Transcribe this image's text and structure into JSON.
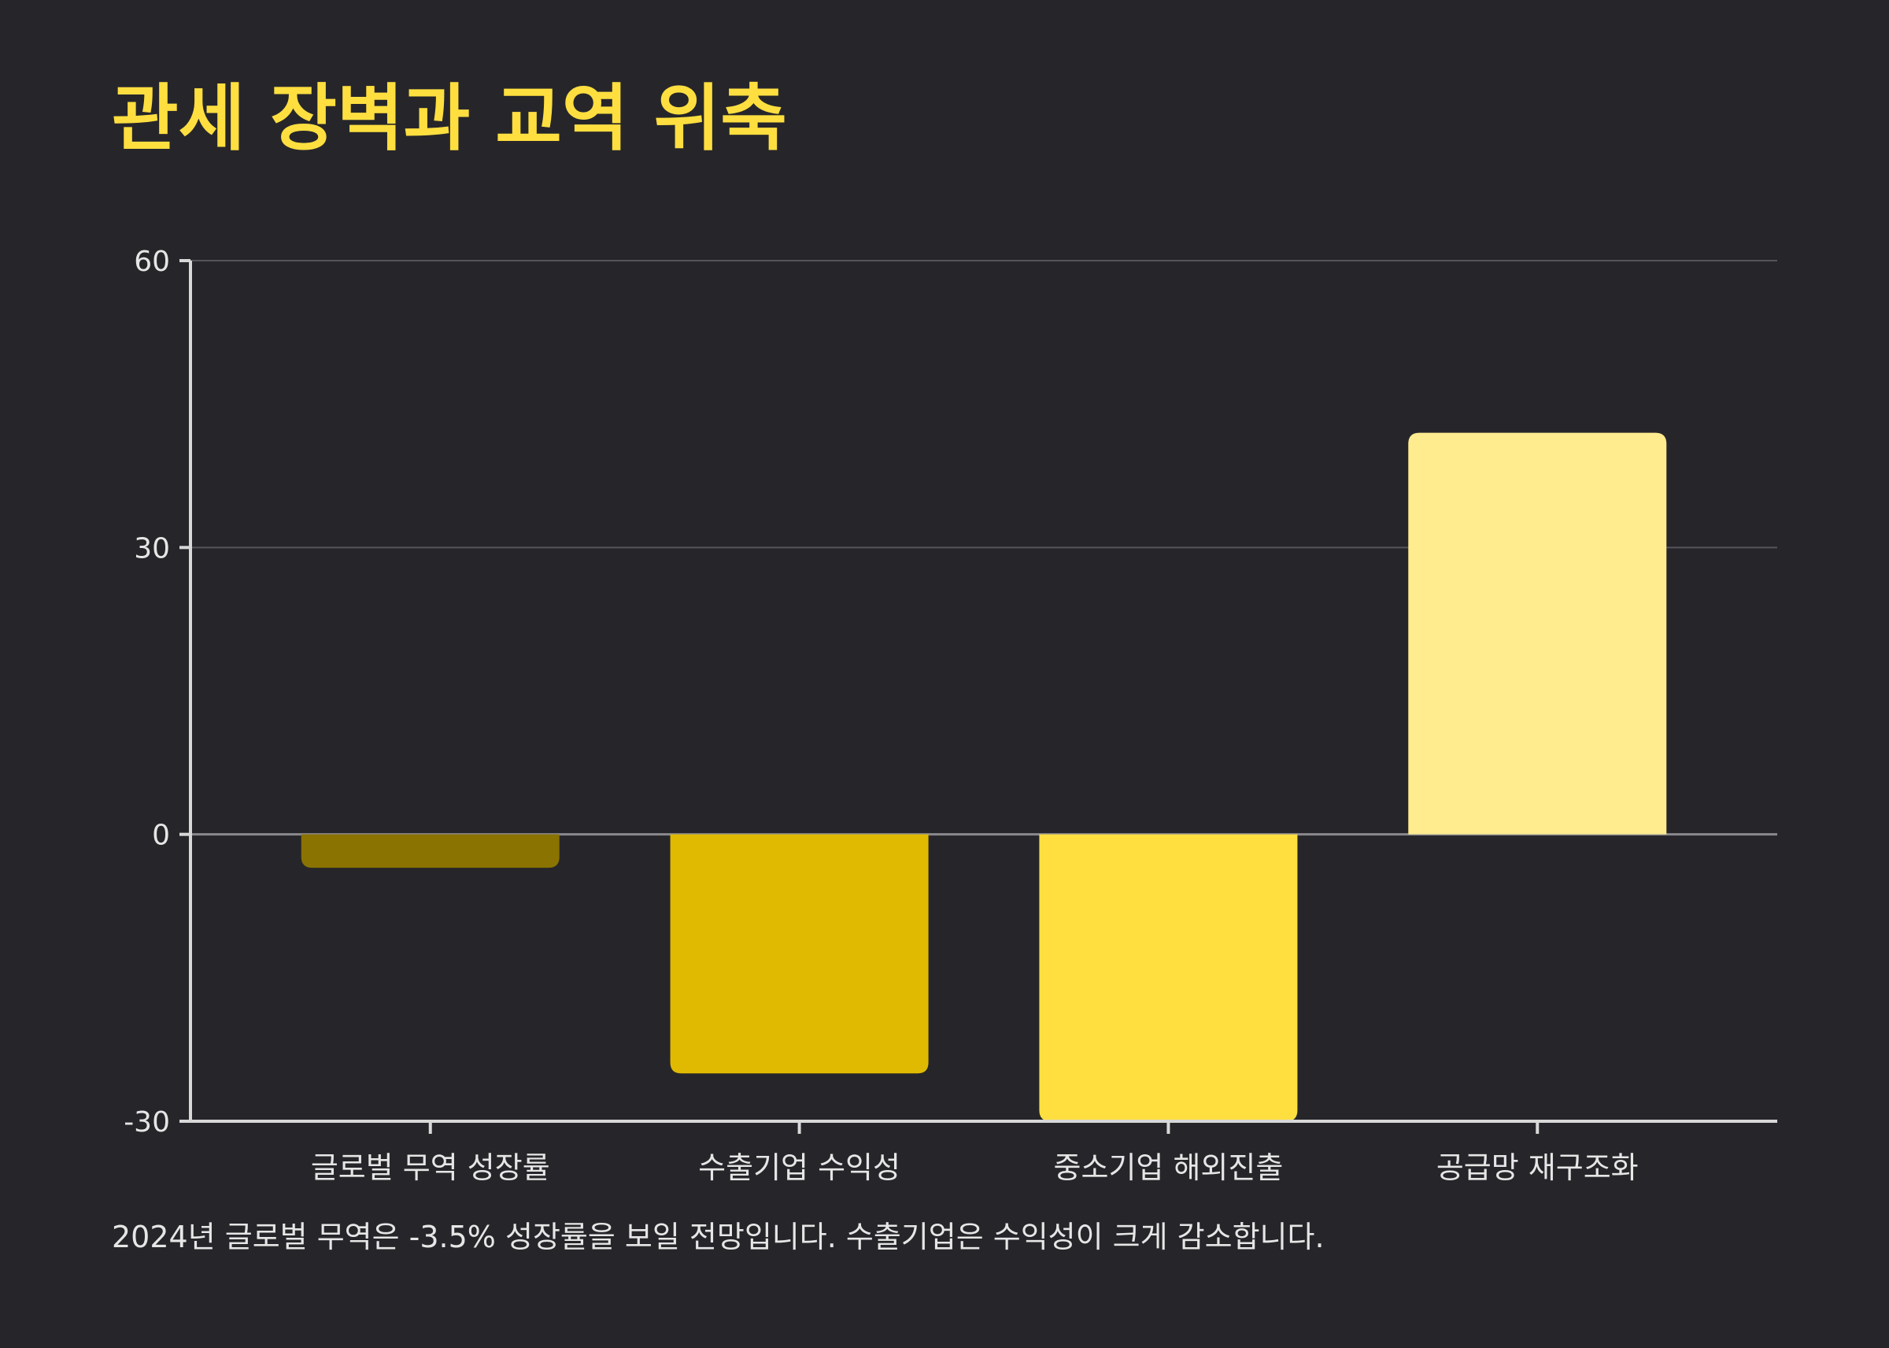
{
  "title": "관세 장벽과 교역 위축",
  "caption": "2024년 글로벌 무역은 -3.5% 성장률을 보일 전망입니다. 수출기업은 수익성이 크게 감소합니다.",
  "colors": {
    "background": "#26262a",
    "title": "#ffdf40",
    "bars": [
      "#8a7300",
      "#e0ba00",
      "#ffdf40",
      "#ffec8f"
    ],
    "gridline": "#55555a",
    "axis": "#d8d8d8"
  },
  "chart_data": {
    "type": "bar",
    "categories": [
      "글로벌 무역 성장률",
      "수출기업 수익성",
      "중소기업 해외진출",
      "공급망 재구조화"
    ],
    "values": [
      -3.5,
      -25,
      -30,
      42
    ],
    "ylim": [
      -30,
      60
    ],
    "yticks": [
      "-30",
      "0",
      "30",
      "60"
    ],
    "xlabel": "",
    "ylabel": "",
    "grid": true,
    "legend": false
  }
}
